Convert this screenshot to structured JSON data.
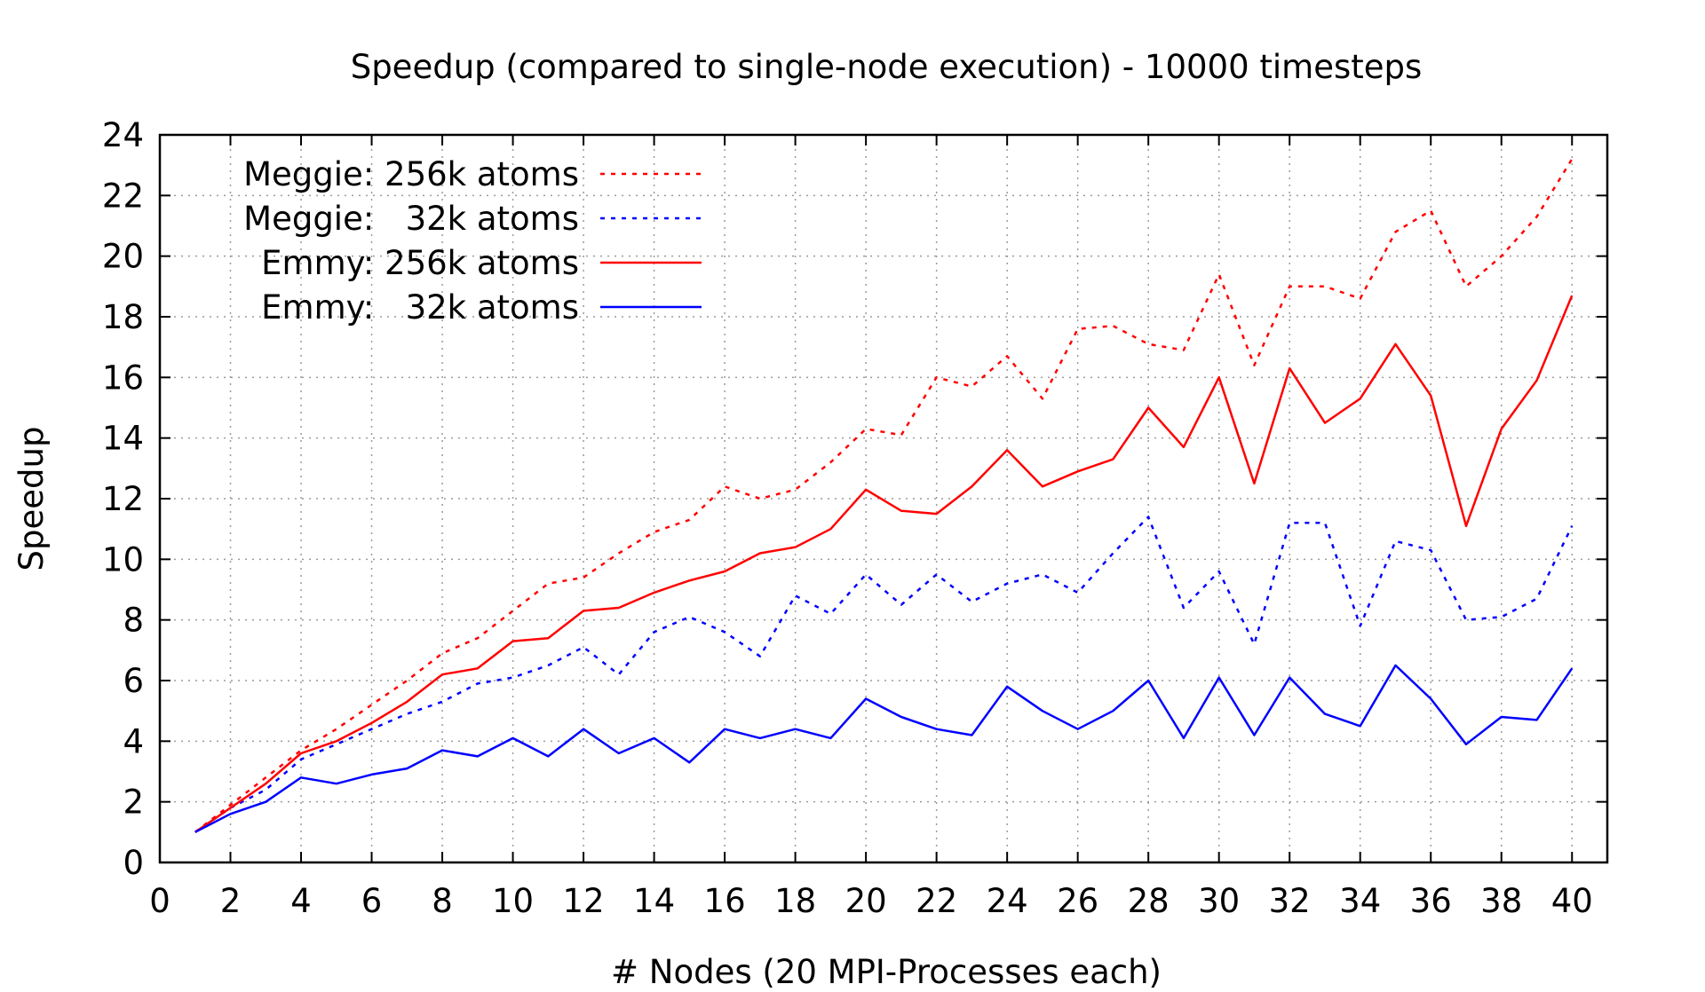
{
  "chart_data": {
    "type": "line",
    "title": "Speedup (compared to single-node execution) - 10000 timesteps",
    "xlabel": "# Nodes (20 MPI-Processes each)",
    "ylabel": "Speedup",
    "xlim": [
      0,
      41
    ],
    "ylim": [
      0,
      24
    ],
    "xticks": [
      0,
      2,
      4,
      6,
      8,
      10,
      12,
      14,
      16,
      18,
      20,
      22,
      24,
      26,
      28,
      30,
      32,
      34,
      36,
      38,
      40
    ],
    "yticks": [
      0,
      2,
      4,
      6,
      8,
      10,
      12,
      14,
      16,
      18,
      20,
      22,
      24
    ],
    "grid": true,
    "legend_position": "top-left",
    "x": [
      1,
      2,
      3,
      4,
      5,
      6,
      7,
      8,
      9,
      10,
      11,
      12,
      13,
      14,
      15,
      16,
      17,
      18,
      19,
      20,
      21,
      22,
      23,
      24,
      25,
      26,
      27,
      28,
      29,
      30,
      31,
      32,
      33,
      34,
      35,
      36,
      37,
      38,
      39,
      40
    ],
    "series": [
      {
        "name": "Meggie: 256k atoms",
        "color": "#ff0000",
        "dash": "dotted",
        "values": [
          1.0,
          1.9,
          2.8,
          3.7,
          4.4,
          5.2,
          6.0,
          6.9,
          7.4,
          8.3,
          9.2,
          9.4,
          10.2,
          10.9,
          11.3,
          12.4,
          12.0,
          12.3,
          13.2,
          14.3,
          14.1,
          16.0,
          15.7,
          16.7,
          15.3,
          17.6,
          17.7,
          17.1,
          16.9,
          19.4,
          16.4,
          19.0,
          19.0,
          18.6,
          20.8,
          21.5,
          19.0,
          20.0,
          21.3,
          23.2
        ]
      },
      {
        "name": "Meggie:   32k atoms",
        "color": "#0000ff",
        "dash": "dotted",
        "values": [
          1.0,
          1.8,
          2.4,
          3.4,
          3.9,
          4.4,
          4.9,
          5.3,
          5.9,
          6.1,
          6.5,
          7.1,
          6.2,
          7.6,
          8.1,
          7.6,
          6.8,
          8.8,
          8.2,
          9.5,
          8.5,
          9.5,
          8.6,
          9.2,
          9.5,
          8.9,
          10.2,
          11.4,
          8.4,
          9.6,
          7.2,
          11.2,
          11.2,
          7.8,
          10.6,
          10.3,
          8.0,
          8.1,
          8.7,
          11.1
        ]
      },
      {
        "name": "Emmy: 256k atoms",
        "color": "#ff0000",
        "dash": "solid",
        "values": [
          1.0,
          1.8,
          2.6,
          3.6,
          4.0,
          4.6,
          5.3,
          6.2,
          6.4,
          7.3,
          7.4,
          8.3,
          8.4,
          8.9,
          9.3,
          9.6,
          10.2,
          10.4,
          11.0,
          12.3,
          11.6,
          11.5,
          12.4,
          13.6,
          12.4,
          12.9,
          13.3,
          15.0,
          13.7,
          16.0,
          12.5,
          16.3,
          14.5,
          15.3,
          17.1,
          15.4,
          11.1,
          14.3,
          15.9,
          18.7
        ]
      },
      {
        "name": "Emmy:   32k atoms",
        "color": "#0000ff",
        "dash": "solid",
        "values": [
          1.0,
          1.6,
          2.0,
          2.8,
          2.6,
          2.9,
          3.1,
          3.7,
          3.5,
          4.1,
          3.5,
          4.4,
          3.6,
          4.1,
          3.3,
          4.4,
          4.1,
          4.4,
          4.1,
          5.4,
          4.8,
          4.4,
          4.2,
          5.8,
          5.0,
          4.4,
          5.0,
          6.0,
          4.1,
          6.1,
          4.2,
          6.1,
          4.9,
          4.5,
          6.5,
          5.4,
          3.9,
          4.8,
          4.7,
          6.4
        ]
      }
    ]
  }
}
